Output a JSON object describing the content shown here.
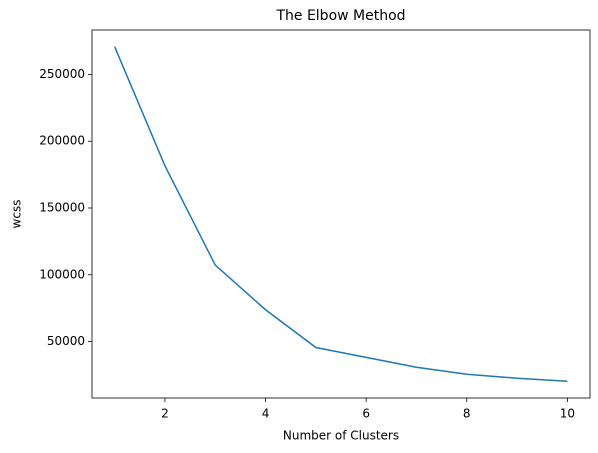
{
  "chart_data": {
    "type": "line",
    "title": "The Elbow Method",
    "x_label": "Number of Clusters",
    "y_label": "wcss",
    "x": [
      1,
      2,
      3,
      4,
      5,
      6,
      7,
      8,
      9,
      10
    ],
    "series": [
      {
        "name": "wcss",
        "color": "#1f77b4",
        "values": [
          270800,
          181600,
          107250,
          73800,
          45500,
          38100,
          30700,
          25500,
          22500,
          20250
        ]
      }
    ],
    "xlim": [
      0.55,
      10.45
    ],
    "xticks": [
      2,
      4,
      6,
      8,
      10
    ],
    "ylim": [
      7700,
      283300
    ],
    "yticks": [
      50000,
      100000,
      150000,
      200000,
      250000
    ],
    "grid": false
  }
}
